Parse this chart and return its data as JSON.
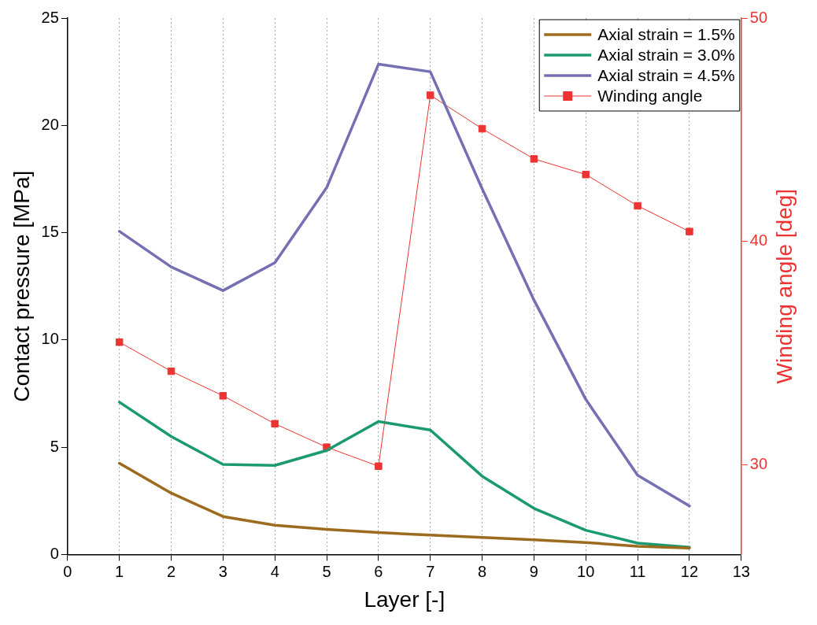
{
  "chart_data": {
    "type": "line",
    "xlabel": "Layer [-]",
    "ylabel": "Contact pressure [MPa]",
    "y2label": "Winding angle [deg]",
    "x": [
      1,
      2,
      3,
      4,
      5,
      6,
      7,
      8,
      9,
      10,
      11,
      12
    ],
    "xlim": [
      0,
      13
    ],
    "xticks": [
      0,
      1,
      2,
      3,
      4,
      5,
      6,
      7,
      8,
      9,
      10,
      11,
      12,
      13
    ],
    "ylim": [
      0,
      25
    ],
    "yticks": [
      0,
      5,
      10,
      15,
      20,
      25
    ],
    "y2lim": [
      26,
      50
    ],
    "y2ticks": [
      30,
      40,
      50
    ],
    "grid": "x",
    "legend": "top right",
    "series": [
      {
        "name": "Axial strain = 1.5%",
        "color": "#9c6b1e",
        "marker": "none",
        "values": [
          4.25,
          2.86,
          1.77,
          1.36,
          1.17,
          1.02,
          0.9,
          0.79,
          0.68,
          0.56,
          0.38,
          0.3
        ]
      },
      {
        "name": "Axial strain = 3.0%",
        "color": "#1a9a6e",
        "marker": "none",
        "values": [
          7.1,
          5.5,
          4.2,
          4.15,
          4.85,
          6.2,
          5.8,
          3.65,
          2.15,
          1.13,
          0.53,
          0.34
        ]
      },
      {
        "name": "Axial strain = 4.5%",
        "color": "#7570b3",
        "marker": "none",
        "values": [
          15.06,
          13.4,
          12.3,
          13.6,
          17.1,
          22.85,
          22.5,
          17.05,
          11.86,
          7.23,
          3.69,
          2.26
        ]
      },
      {
        "name": "Winding angle",
        "color": "#ee3333",
        "marker": "square",
        "axis": "y2",
        "values": [
          35.5,
          34.2,
          33.1,
          31.85,
          30.8,
          29.95,
          46.55,
          45.05,
          43.7,
          43.0,
          41.6,
          40.45
        ]
      }
    ]
  }
}
